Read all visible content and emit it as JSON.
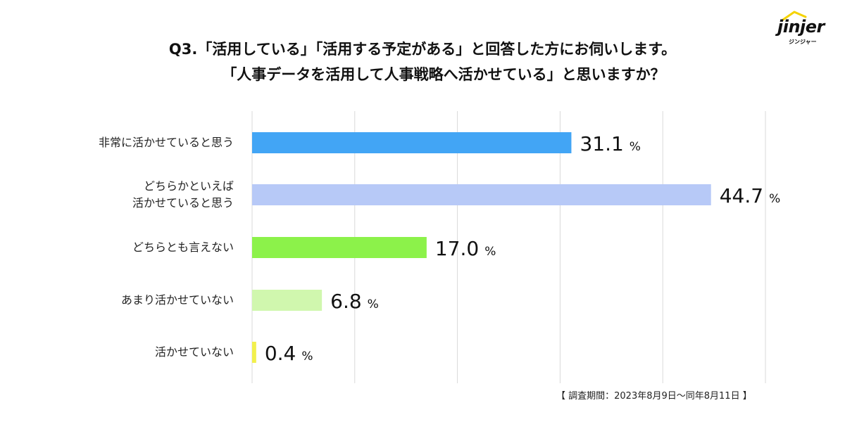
{
  "logo": {
    "name": "jinjer",
    "sub": "ジンジャー"
  },
  "title": {
    "line1": "Q3.「活用している」「活用する予定がある」と回答した方にお伺いします。",
    "line2": "「人事データを活用して人事戦略へ活かせている」と思いますか？"
  },
  "footnote": "【 調査期間：2023年8月9日〜同年8月11日 】",
  "chart_data": {
    "type": "bar",
    "orientation": "horizontal",
    "categories": [
      "非常に活かせていると思う",
      "どちらかといえば\n活かせていると思う",
      "どちらとも言えない",
      "あまり活かせていない",
      "活かせていない"
    ],
    "values": [
      31.1,
      44.7,
      17.0,
      6.8,
      0.4
    ],
    "value_labels": [
      "31.1",
      "44.7",
      "17.0",
      "6.8",
      "0.4"
    ],
    "unit": "%",
    "colors": [
      "#42a5f5",
      "#b7c9f7",
      "#8cf24a",
      "#d0f7ae",
      "#f2f04c"
    ],
    "xlim": [
      0,
      50
    ],
    "grid": true,
    "gridline_count": 6
  }
}
